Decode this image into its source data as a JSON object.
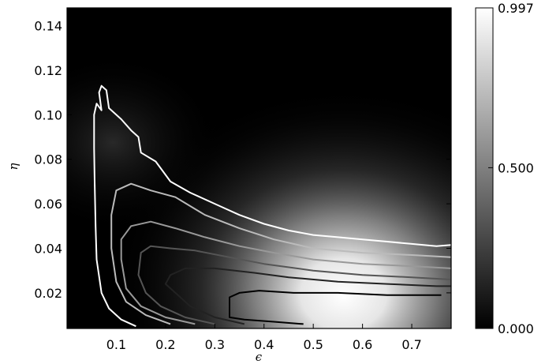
{
  "chart_data": {
    "type": "heatmap",
    "title": "",
    "xlabel": "ϵ",
    "ylabel": "η",
    "xlim": [
      0.0,
      0.78
    ],
    "ylim": [
      0.004,
      0.148
    ],
    "xticks": [
      0.1,
      0.2,
      0.3,
      0.4,
      0.5,
      0.6,
      0.7
    ],
    "xtick_labels": [
      "0.1",
      "0.2",
      "0.3",
      "0.4",
      "0.5",
      "0.6",
      "0.7"
    ],
    "yticks": [
      0.02,
      0.04,
      0.06,
      0.08,
      0.1,
      0.12,
      0.14
    ],
    "ytick_labels": [
      "0.02",
      "0.04",
      "0.06",
      "0.08",
      "0.10",
      "0.12",
      "0.14"
    ],
    "colormap": "gray",
    "colorbar": {
      "min": 0.0,
      "max": 0.997,
      "ticks": [
        0.0,
        0.5,
        0.997
      ],
      "tick_labels": [
        "0.000",
        "0.500",
        "0.997"
      ]
    },
    "contours": [
      {
        "level": 0.1,
        "color": "#ffffff",
        "points": [
          [
            0.14,
            0.005
          ],
          [
            0.11,
            0.008
          ],
          [
            0.085,
            0.013
          ],
          [
            0.07,
            0.02
          ],
          [
            0.06,
            0.035
          ],
          [
            0.058,
            0.05
          ],
          [
            0.056,
            0.07
          ],
          [
            0.055,
            0.085
          ],
          [
            0.055,
            0.1
          ],
          [
            0.06,
            0.105
          ],
          [
            0.07,
            0.102
          ],
          [
            0.065,
            0.11
          ],
          [
            0.07,
            0.113
          ],
          [
            0.08,
            0.111
          ],
          [
            0.085,
            0.103
          ],
          [
            0.11,
            0.098
          ],
          [
            0.13,
            0.093
          ],
          [
            0.145,
            0.09
          ],
          [
            0.15,
            0.083
          ],
          [
            0.18,
            0.079
          ],
          [
            0.21,
            0.07
          ],
          [
            0.25,
            0.065
          ],
          [
            0.3,
            0.06
          ],
          [
            0.35,
            0.055
          ],
          [
            0.4,
            0.051
          ],
          [
            0.45,
            0.048
          ],
          [
            0.5,
            0.046
          ],
          [
            0.55,
            0.045
          ],
          [
            0.6,
            0.044
          ],
          [
            0.65,
            0.043
          ],
          [
            0.7,
            0.042
          ],
          [
            0.75,
            0.041
          ],
          [
            0.78,
            0.0415
          ]
        ]
      },
      {
        "level": 0.3,
        "color": "#bbbbbb",
        "points": [
          [
            0.21,
            0.006
          ],
          [
            0.16,
            0.01
          ],
          [
            0.12,
            0.016
          ],
          [
            0.1,
            0.025
          ],
          [
            0.09,
            0.04
          ],
          [
            0.09,
            0.055
          ],
          [
            0.1,
            0.066
          ],
          [
            0.13,
            0.069
          ],
          [
            0.17,
            0.066
          ],
          [
            0.22,
            0.063
          ],
          [
            0.28,
            0.055
          ],
          [
            0.35,
            0.049
          ],
          [
            0.42,
            0.044
          ],
          [
            0.5,
            0.04
          ],
          [
            0.6,
            0.038
          ],
          [
            0.7,
            0.037
          ],
          [
            0.78,
            0.036
          ]
        ]
      },
      {
        "level": 0.5,
        "color": "#999999",
        "points": [
          [
            0.26,
            0.006
          ],
          [
            0.2,
            0.009
          ],
          [
            0.15,
            0.014
          ],
          [
            0.12,
            0.022
          ],
          [
            0.11,
            0.035
          ],
          [
            0.11,
            0.044
          ],
          [
            0.13,
            0.05
          ],
          [
            0.17,
            0.052
          ],
          [
            0.22,
            0.049
          ],
          [
            0.28,
            0.045
          ],
          [
            0.35,
            0.041
          ],
          [
            0.42,
            0.038
          ],
          [
            0.5,
            0.035
          ],
          [
            0.6,
            0.033
          ],
          [
            0.7,
            0.032
          ],
          [
            0.78,
            0.031
          ]
        ]
      },
      {
        "level": 0.7,
        "color": "#555555",
        "points": [
          [
            0.3,
            0.006
          ],
          [
            0.24,
            0.009
          ],
          [
            0.19,
            0.014
          ],
          [
            0.16,
            0.02
          ],
          [
            0.145,
            0.028
          ],
          [
            0.15,
            0.038
          ],
          [
            0.17,
            0.041
          ],
          [
            0.21,
            0.04
          ],
          [
            0.26,
            0.039
          ],
          [
            0.33,
            0.036
          ],
          [
            0.4,
            0.033
          ],
          [
            0.5,
            0.03
          ],
          [
            0.6,
            0.028
          ],
          [
            0.7,
            0.027
          ],
          [
            0.78,
            0.026
          ]
        ]
      },
      {
        "level": 0.85,
        "color": "#222222",
        "points": [
          [
            0.36,
            0.006
          ],
          [
            0.3,
            0.009
          ],
          [
            0.25,
            0.014
          ],
          [
            0.22,
            0.02
          ],
          [
            0.2,
            0.024
          ],
          [
            0.21,
            0.028
          ],
          [
            0.24,
            0.031
          ],
          [
            0.3,
            0.031
          ],
          [
            0.38,
            0.029
          ],
          [
            0.45,
            0.027
          ],
          [
            0.55,
            0.025
          ],
          [
            0.65,
            0.024
          ],
          [
            0.75,
            0.023
          ],
          [
            0.78,
            0.023
          ]
        ]
      },
      {
        "level": 0.95,
        "color": "#000000",
        "points": [
          [
            0.48,
            0.006
          ],
          [
            0.42,
            0.007
          ],
          [
            0.36,
            0.008
          ],
          [
            0.33,
            0.009
          ],
          [
            0.33,
            0.013
          ],
          [
            0.33,
            0.018
          ],
          [
            0.35,
            0.02
          ],
          [
            0.39,
            0.021
          ],
          [
            0.46,
            0.02
          ],
          [
            0.55,
            0.02
          ],
          [
            0.65,
            0.019
          ],
          [
            0.72,
            0.019
          ],
          [
            0.76,
            0.019
          ]
        ]
      }
    ]
  }
}
